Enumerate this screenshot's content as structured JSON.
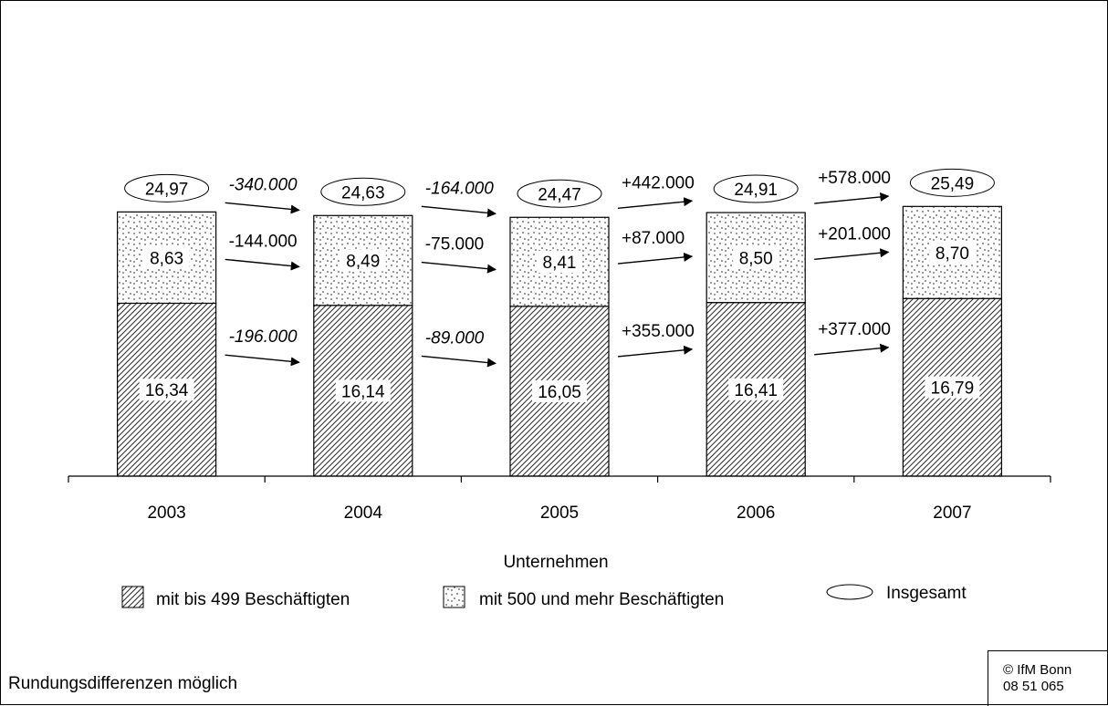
{
  "chart_data": {
    "type": "bar",
    "stacked": true,
    "categories": [
      "2003",
      "2004",
      "2005",
      "2006",
      "2007"
    ],
    "series": [
      {
        "name": "mit bis 499 Beschäftigten",
        "values": [
          16.34,
          16.14,
          16.05,
          16.41,
          16.79
        ],
        "labels": [
          "16,34",
          "16,14",
          "16,05",
          "16,41",
          "16,79"
        ]
      },
      {
        "name": "mit 500 und mehr Beschäftigten",
        "values": [
          8.63,
          8.49,
          8.41,
          8.5,
          8.7
        ],
        "labels": [
          "8,63",
          "8,49",
          "8,41",
          "8,50",
          "8,70"
        ]
      }
    ],
    "totals": {
      "name": "Insgesamt",
      "values": [
        24.97,
        24.63,
        24.47,
        24.91,
        25.49
      ],
      "labels": [
        "24,97",
        "24,63",
        "24,47",
        "24,91",
        "25,49"
      ]
    },
    "changes": {
      "total": [
        "-340.000",
        "-164.000",
        "+442.000",
        "+578.000"
      ],
      "large": [
        "-144.000",
        "-75.000",
        "+87.000",
        "+201.000"
      ],
      "small": [
        "-196.000",
        "-89.000",
        "+355.000",
        "+377.000"
      ]
    },
    "legend_title": "Unternehmen",
    "legend_position": "bottom",
    "ylim": [
      0,
      30
    ],
    "grid": false
  },
  "footnote": "Rundungsdifferenzen möglich",
  "credit": {
    "line1": "© IfM Bonn",
    "line2": "08  51  065"
  }
}
